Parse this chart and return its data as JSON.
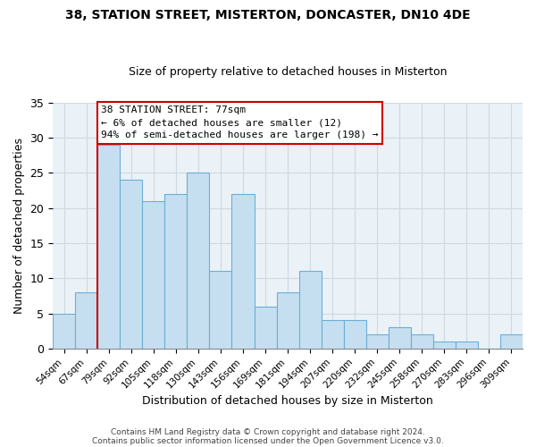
{
  "title": "38, STATION STREET, MISTERTON, DONCASTER, DN10 4DE",
  "subtitle": "Size of property relative to detached houses in Misterton",
  "xlabel": "Distribution of detached houses by size in Misterton",
  "ylabel": "Number of detached properties",
  "footer_line1": "Contains HM Land Registry data © Crown copyright and database right 2024.",
  "footer_line2": "Contains public sector information licensed under the Open Government Licence v3.0.",
  "bin_labels": [
    "54sqm",
    "67sqm",
    "79sqm",
    "92sqm",
    "105sqm",
    "118sqm",
    "130sqm",
    "143sqm",
    "156sqm",
    "169sqm",
    "181sqm",
    "194sqm",
    "207sqm",
    "220sqm",
    "232sqm",
    "245sqm",
    "258sqm",
    "270sqm",
    "283sqm",
    "296sqm",
    "309sqm"
  ],
  "bar_heights": [
    5,
    8,
    29,
    24,
    21,
    22,
    25,
    11,
    22,
    6,
    8,
    11,
    4,
    4,
    2,
    3,
    2,
    1,
    1,
    0,
    2
  ],
  "bar_color": "#c6dff0",
  "bar_edge_color": "#6aafd6",
  "marker_bin_index": 2,
  "marker_label": "38 STATION STREET: 77sqm",
  "marker_color": "#cc0000",
  "annot_line2": "← 6% of detached houses are smaller (12)",
  "annot_line3": "94% of semi-detached houses are larger (198) →",
  "annotation_box_color": "#ffffff",
  "annotation_box_edge_color": "#cc0000",
  "ylim": [
    0,
    35
  ],
  "yticks": [
    0,
    5,
    10,
    15,
    20,
    25,
    30,
    35
  ],
  "grid_color": "#d0d8e0",
  "bg_color": "#eaf2f8"
}
